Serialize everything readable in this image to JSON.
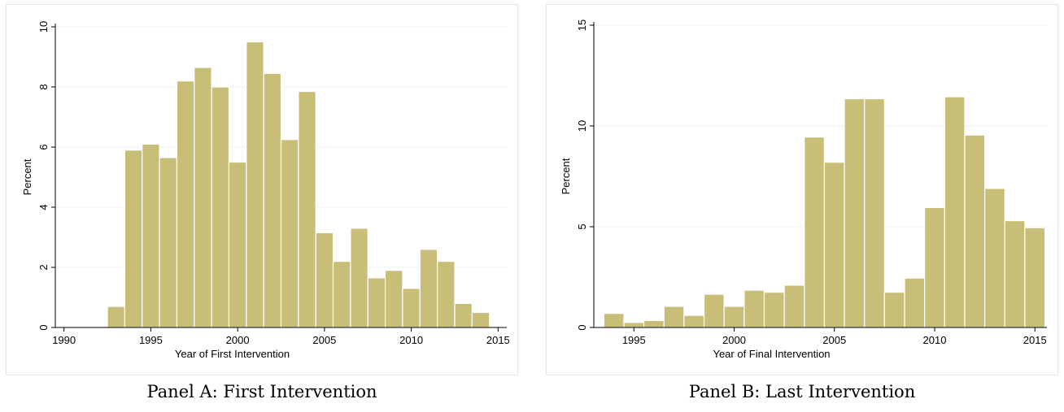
{
  "chart_data": [
    {
      "type": "bar",
      "xlabel": "Year of First Intervention",
      "ylabel": "Percent",
      "xlim": [
        1989.5,
        2015.5
      ],
      "ylim": [
        0,
        10
      ],
      "xticks": [
        1990,
        1995,
        2000,
        2005,
        2010,
        2015
      ],
      "yticks": [
        0,
        2,
        4,
        6,
        8,
        10
      ],
      "bin_width": 1,
      "grid": true,
      "bar_color": "#c8be78",
      "x": [
        1993,
        1994,
        1995,
        1996,
        1997,
        1998,
        1999,
        2000,
        2001,
        2002,
        2003,
        2004,
        2005,
        2006,
        2007,
        2008,
        2009,
        2010,
        2011,
        2012,
        2013,
        2014
      ],
      "values": [
        0.7,
        5.9,
        6.1,
        5.65,
        8.2,
        8.65,
        8.0,
        5.5,
        9.5,
        8.45,
        6.25,
        7.85,
        3.15,
        2.2,
        3.3,
        1.65,
        1.9,
        1.3,
        2.6,
        2.2,
        0.8,
        0.5
      ],
      "caption": "Panel A: First Intervention"
    },
    {
      "type": "bar",
      "xlabel": "Year of Final Intervention",
      "ylabel": "Percent",
      "xlim": [
        1993,
        2015.6
      ],
      "ylim": [
        0,
        15
      ],
      "xticks": [
        1995,
        2000,
        2005,
        2010,
        2015
      ],
      "yticks": [
        0,
        5,
        10,
        15
      ],
      "bin_width": 1,
      "grid": true,
      "bar_color": "#c8be78",
      "x": [
        1994,
        1995,
        1996,
        1997,
        1998,
        1999,
        2000,
        2001,
        2002,
        2003,
        2004,
        2005,
        2006,
        2007,
        2008,
        2009,
        2010,
        2011,
        2012,
        2013,
        2014,
        2015
      ],
      "values": [
        0.7,
        0.25,
        0.35,
        1.05,
        0.6,
        1.65,
        1.05,
        1.85,
        1.75,
        2.1,
        9.45,
        8.2,
        11.35,
        11.35,
        1.75,
        2.45,
        5.95,
        11.45,
        9.55,
        6.9,
        5.3,
        4.95
      ],
      "caption": "Panel B: Last Intervention"
    }
  ]
}
